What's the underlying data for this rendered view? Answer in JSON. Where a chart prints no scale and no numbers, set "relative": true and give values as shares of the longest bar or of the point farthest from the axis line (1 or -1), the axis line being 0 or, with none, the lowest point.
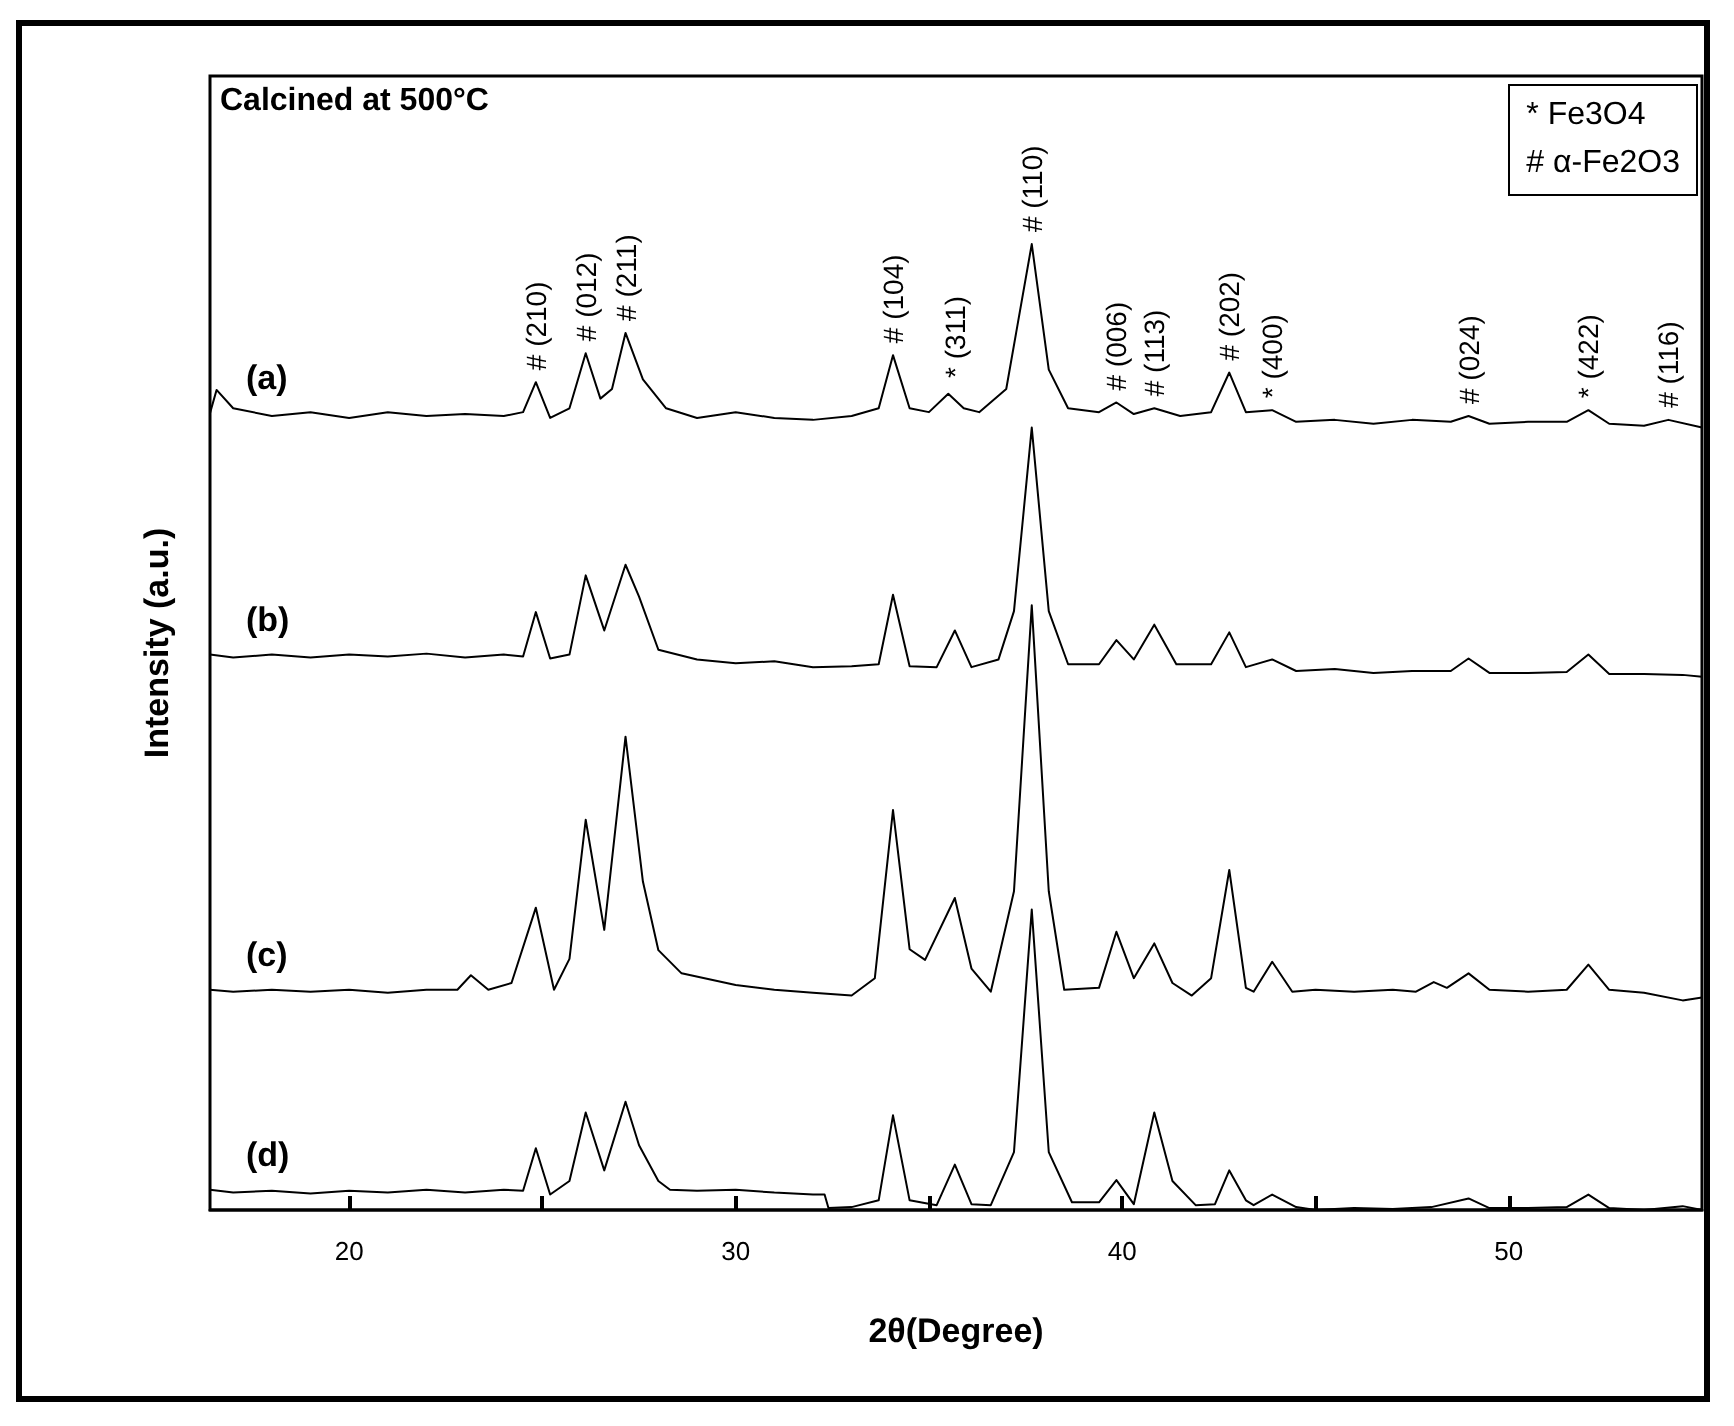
{
  "chart_data": {
    "type": "line",
    "relative": true,
    "xlabel": "2θ(Degree)",
    "ylabel": "Intensity (a.u.)",
    "xlim": [
      16.4,
      55
    ],
    "xticks": [
      20,
      {
        "value": 25,
        "label": null
      },
      30,
      {
        "value": 35,
        "label": null
      },
      40,
      {
        "value": 45,
        "label": null
      },
      50
    ],
    "annotations": [
      "Calcined at 500°C",
      "* Fe3O4",
      "# α-Fe2O3",
      {
        "text": "# (210)",
        "x": 24.83,
        "y": 0.857
      },
      {
        "text": "# (012)",
        "x": 26.12,
        "y": 0.887
      },
      {
        "text": "# (211)",
        "x": 27.15,
        "y": 0.908
      },
      {
        "text": "# (104)",
        "x": 34.07,
        "y": 0.885
      },
      {
        "text": "* (311)",
        "x": 35.67,
        "y": 0.849
      },
      {
        "text": "# (110)",
        "x": 37.66,
        "y": 1
      },
      {
        "text": "# (006)",
        "x": 39.85,
        "y": 0.836
      },
      {
        "text": "# (113)",
        "x": 40.83,
        "y": 0.83
      },
      {
        "text": "# (202)",
        "x": 42.77,
        "y": 0.867
      },
      {
        "text": "* (400)",
        "x": 43.88,
        "y": 0.828
      },
      {
        "text": "# (024)",
        "x": 48.96,
        "y": 0.822
      },
      {
        "text": "* (422)",
        "x": 52.06,
        "y": 0.828
      },
      {
        "text": "# (116)",
        "x": 54.13,
        "y": 0.818
      }
    ],
    "series": [
      {
        "name": "(a)",
        "color": "#000000",
        "x": [
          16.4,
          16.57,
          17.0,
          18,
          19,
          20,
          21,
          22,
          23,
          24,
          24.5,
          24.83,
          25.2,
          25.7,
          26.12,
          26.5,
          26.8,
          27.15,
          27.6,
          28.2,
          29,
          30,
          31,
          32,
          33,
          33.7,
          34.07,
          34.5,
          35,
          35.5,
          35.9,
          36.3,
          37,
          37.66,
          38.1,
          38.6,
          39.4,
          39.85,
          40.3,
          40.83,
          41.5,
          42.3,
          42.77,
          43.2,
          43.88,
          44.5,
          45.5,
          46.5,
          47.5,
          48.5,
          48.96,
          49.5,
          50.5,
          51.5,
          52.06,
          52.6,
          53.5,
          54.13,
          55
        ],
        "values": [
          0.825,
          0.849,
          0.83,
          0.822,
          0.826,
          0.82,
          0.826,
          0.822,
          0.824,
          0.822,
          0.826,
          0.857,
          0.82,
          0.83,
          0.887,
          0.84,
          0.85,
          0.908,
          0.86,
          0.83,
          0.82,
          0.826,
          0.82,
          0.818,
          0.822,
          0.83,
          0.885,
          0.83,
          0.826,
          0.845,
          0.83,
          0.826,
          0.85,
          1,
          0.87,
          0.83,
          0.826,
          0.836,
          0.824,
          0.83,
          0.822,
          0.826,
          0.867,
          0.826,
          0.828,
          0.816,
          0.818,
          0.814,
          0.818,
          0.816,
          0.822,
          0.814,
          0.816,
          0.816,
          0.828,
          0.814,
          0.812,
          0.818,
          0.81
        ]
      },
      {
        "name": "(b)",
        "color": "#000000",
        "x": [
          16.4,
          17,
          18,
          19,
          20,
          21,
          22,
          23,
          24,
          24.5,
          24.83,
          25.2,
          25.7,
          26.12,
          26.6,
          27.15,
          27.5,
          28,
          29,
          30,
          31,
          32,
          33,
          33.7,
          34.07,
          34.5,
          35.2,
          35.67,
          36.1,
          36.8,
          37.2,
          37.66,
          38.1,
          38.6,
          39.4,
          39.85,
          40.3,
          40.83,
          41.4,
          42.3,
          42.77,
          43.2,
          43.88,
          44.5,
          45.5,
          46.5,
          47.5,
          48.5,
          48.96,
          49.5,
          50.5,
          51.5,
          52.06,
          52.6,
          53.5,
          54.5,
          55
        ],
        "values": [
          0.575,
          0.572,
          0.575,
          0.572,
          0.575,
          0.573,
          0.576,
          0.572,
          0.575,
          0.573,
          0.619,
          0.571,
          0.575,
          0.657,
          0.6,
          0.668,
          0.635,
          0.58,
          0.57,
          0.566,
          0.568,
          0.562,
          0.563,
          0.565,
          0.637,
          0.563,
          0.562,
          0.6,
          0.562,
          0.57,
          0.62,
          0.81,
          0.62,
          0.565,
          0.565,
          0.59,
          0.57,
          0.606,
          0.565,
          0.565,
          0.598,
          0.562,
          0.57,
          0.558,
          0.56,
          0.556,
          0.558,
          0.558,
          0.571,
          0.556,
          0.556,
          0.557,
          0.575,
          0.555,
          0.555,
          0.554,
          0.552
        ]
      },
      {
        "name": "(c)",
        "color": "#000000",
        "x": [
          16.4,
          17,
          18,
          19,
          20,
          21,
          22,
          22.8,
          23.15,
          23.6,
          24.2,
          24.83,
          25.3,
          25.7,
          26.12,
          26.6,
          27.15,
          27.6,
          28,
          28.6,
          30,
          31,
          32,
          33,
          33.6,
          34.07,
          34.5,
          34.9,
          35.67,
          36.1,
          36.6,
          37.2,
          37.66,
          38.1,
          38.5,
          39.4,
          39.85,
          40.3,
          40.83,
          41.3,
          41.8,
          42.3,
          42.77,
          43.2,
          43.4,
          43.88,
          44.4,
          45,
          46,
          47,
          47.6,
          48.06,
          48.4,
          48.96,
          49.5,
          50.5,
          51.5,
          52.06,
          52.6,
          53.5,
          54.5,
          55
        ],
        "values": [
          0.228,
          0.226,
          0.228,
          0.226,
          0.228,
          0.225,
          0.228,
          0.228,
          0.243,
          0.228,
          0.235,
          0.313,
          0.228,
          0.26,
          0.404,
          0.29,
          0.49,
          0.34,
          0.269,
          0.245,
          0.233,
          0.228,
          0.225,
          0.222,
          0.24,
          0.414,
          0.27,
          0.259,
          0.323,
          0.25,
          0.226,
          0.33,
          0.626,
          0.33,
          0.228,
          0.23,
          0.288,
          0.24,
          0.276,
          0.235,
          0.222,
          0.24,
          0.352,
          0.23,
          0.226,
          0.257,
          0.226,
          0.228,
          0.226,
          0.228,
          0.226,
          0.236,
          0.23,
          0.245,
          0.228,
          0.226,
          0.228,
          0.254,
          0.228,
          0.225,
          0.217,
          0.22
        ]
      },
      {
        "name": "(d)",
        "color": "#000000",
        "x": [
          16.4,
          17,
          18,
          19,
          20,
          21,
          22,
          23,
          24,
          24.5,
          24.83,
          25.2,
          25.7,
          26.12,
          26.6,
          27.15,
          27.5,
          28,
          28.3,
          29,
          30,
          31,
          32,
          32.3,
          32.4,
          33,
          33.7,
          34.07,
          34.5,
          35.2,
          35.67,
          36.1,
          36.6,
          37.2,
          37.66,
          38.1,
          38.7,
          39.4,
          39.85,
          40.3,
          40.83,
          41.3,
          41.9,
          42.4,
          42.77,
          43.2,
          43.4,
          43.88,
          44.5,
          45,
          46,
          47,
          48,
          48.96,
          49.5,
          50.5,
          51.5,
          52.06,
          52.6,
          53.5,
          54.5,
          55
        ],
        "values": [
          0.021,
          0.018,
          0.02,
          0.017,
          0.02,
          0.018,
          0.021,
          0.018,
          0.021,
          0.02,
          0.064,
          0.016,
          0.03,
          0.101,
          0.041,
          0.112,
          0.067,
          0.03,
          0.021,
          0.02,
          0.021,
          0.018,
          0.016,
          0.016,
          0.002,
          0.003,
          0.01,
          0.098,
          0.01,
          0.005,
          0.047,
          0.006,
          0.005,
          0.06,
          0.311,
          0.06,
          0.008,
          0.008,
          0.031,
          0.006,
          0.101,
          0.03,
          0.005,
          0.006,
          0.041,
          0.01,
          0.005,
          0.016,
          0.003,
          0,
          0.002,
          0.001,
          0.003,
          0.012,
          0.002,
          0.002,
          0.003,
          0.016,
          0.002,
          0,
          0.004,
          0
        ]
      }
    ]
  }
}
